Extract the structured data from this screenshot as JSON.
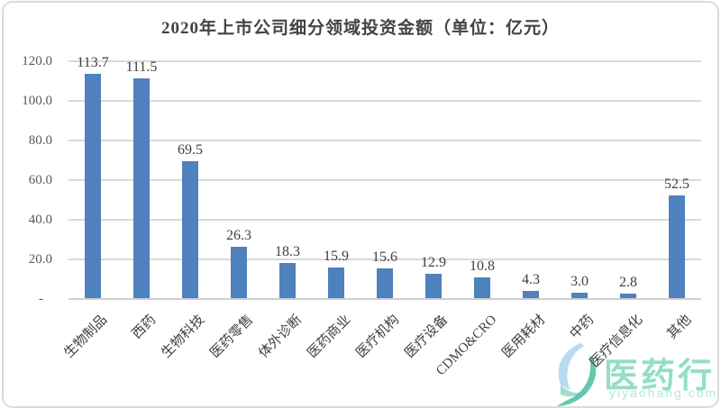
{
  "chart_data": {
    "type": "bar",
    "title": "2020年上市公司细分领域投资金额（单位：亿元）",
    "categories": [
      "生物制品",
      "西药",
      "生物科技",
      "医药零售",
      "体外诊断",
      "医药商业",
      "医疗机构",
      "医疗设备",
      "CDMO&CRO",
      "医用耗材",
      "中药",
      "医疗信息化",
      "其他"
    ],
    "values": [
      113.7,
      111.5,
      69.5,
      26.3,
      18.3,
      15.9,
      15.6,
      12.9,
      10.8,
      4.3,
      3.0,
      2.8,
      52.5
    ],
    "value_labels": [
      "113.7",
      "111.5",
      "69.5",
      "26.3",
      "18.3",
      "15.9",
      "15.6",
      "12.9",
      "10.8",
      "4.3",
      "3.0",
      "2.8",
      "52.5"
    ],
    "xlabel": "",
    "ylabel": "",
    "ylim": [
      0,
      120
    ],
    "yticks": [
      {
        "value": 120,
        "label": "120.0"
      },
      {
        "value": 100,
        "label": "100.0"
      },
      {
        "value": 80,
        "label": "80.0"
      },
      {
        "value": 60,
        "label": "60.0"
      },
      {
        "value": 40,
        "label": "40.0"
      },
      {
        "value": 20,
        "label": "20.0"
      },
      {
        "value": 0,
        "label": "-"
      }
    ],
    "grid": "horizontal-on",
    "legend": "none",
    "bar_color": "#4F81BD",
    "gridline_color": "#d9d9d9",
    "axis_line_color": "#cfcfcf",
    "label_color": "#404040",
    "tick_label_color": "#595959"
  },
  "watermark": {
    "brand": "医药行",
    "domain": "yiyaohang.com",
    "brand_color": "#8BDCC0",
    "domain_color": "#B7E7D6",
    "icon": "leaf-swoosh-icon",
    "icon_color_top": "#B5D9EE",
    "icon_color_bottom": "#53C1A6"
  }
}
